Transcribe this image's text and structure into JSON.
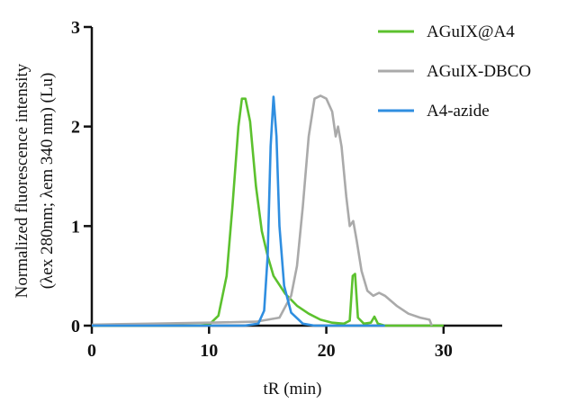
{
  "chart_data": {
    "type": "line",
    "xlabel": "tR (min)",
    "ylabel_line1": "Normalized fluorescence intensity",
    "ylabel_line2": "(λex 280nm; λem 340 nm) (Lu)",
    "xlim": [
      0,
      35
    ],
    "ylim": [
      0,
      3
    ],
    "xticks": [
      0,
      10,
      20,
      30
    ],
    "yticks": [
      0,
      1,
      2,
      3
    ],
    "grid": false,
    "legend_position": "top-right",
    "series": [
      {
        "name": "AGuIX@A4",
        "color": "#5cc12e",
        "points": [
          [
            0,
            0
          ],
          [
            9,
            0
          ],
          [
            10,
            0.01
          ],
          [
            10.8,
            0.1
          ],
          [
            11.5,
            0.5
          ],
          [
            12.0,
            1.2
          ],
          [
            12.5,
            2.0
          ],
          [
            12.8,
            2.28
          ],
          [
            13.1,
            2.28
          ],
          [
            13.5,
            2.05
          ],
          [
            14.0,
            1.4
          ],
          [
            14.5,
            0.95
          ],
          [
            15.0,
            0.7
          ],
          [
            15.5,
            0.5
          ],
          [
            16.5,
            0.32
          ],
          [
            17.5,
            0.2
          ],
          [
            18.5,
            0.12
          ],
          [
            19.5,
            0.06
          ],
          [
            20.5,
            0.03
          ],
          [
            21.5,
            0.02
          ],
          [
            22.0,
            0.05
          ],
          [
            22.25,
            0.5
          ],
          [
            22.45,
            0.52
          ],
          [
            22.7,
            0.08
          ],
          [
            23.2,
            0.02
          ],
          [
            23.8,
            0.03
          ],
          [
            24.1,
            0.09
          ],
          [
            24.4,
            0.02
          ],
          [
            25,
            0
          ],
          [
            30,
            0
          ]
        ]
      },
      {
        "name": "AGuIX-DBCO",
        "color": "#aaaaaa",
        "points": [
          [
            0,
            0.01
          ],
          [
            5,
            0.02
          ],
          [
            10,
            0.03
          ],
          [
            14,
            0.04
          ],
          [
            16,
            0.08
          ],
          [
            17,
            0.3
          ],
          [
            17.5,
            0.6
          ],
          [
            18,
            1.2
          ],
          [
            18.5,
            1.9
          ],
          [
            19,
            2.28
          ],
          [
            19.5,
            2.31
          ],
          [
            20,
            2.28
          ],
          [
            20.5,
            2.15
          ],
          [
            20.8,
            1.9
          ],
          [
            21.0,
            2.0
          ],
          [
            21.3,
            1.8
          ],
          [
            21.7,
            1.3
          ],
          [
            22.0,
            1.0
          ],
          [
            22.3,
            1.05
          ],
          [
            22.6,
            0.85
          ],
          [
            23.0,
            0.55
          ],
          [
            23.5,
            0.35
          ],
          [
            24.0,
            0.3
          ],
          [
            24.5,
            0.33
          ],
          [
            25.0,
            0.3
          ],
          [
            26,
            0.2
          ],
          [
            27,
            0.12
          ],
          [
            28,
            0.08
          ],
          [
            28.8,
            0.06
          ],
          [
            29.0,
            0.0
          ]
        ]
      },
      {
        "name": "A4-azide",
        "color": "#2f8ee0",
        "points": [
          [
            0,
            0
          ],
          [
            13,
            0
          ],
          [
            14.2,
            0.02
          ],
          [
            14.7,
            0.15
          ],
          [
            15.0,
            0.7
          ],
          [
            15.25,
            1.8
          ],
          [
            15.5,
            2.3
          ],
          [
            15.75,
            1.9
          ],
          [
            16.0,
            1.0
          ],
          [
            16.4,
            0.4
          ],
          [
            17.0,
            0.13
          ],
          [
            18.0,
            0.02
          ],
          [
            19,
            0
          ],
          [
            25,
            0
          ]
        ]
      }
    ]
  }
}
